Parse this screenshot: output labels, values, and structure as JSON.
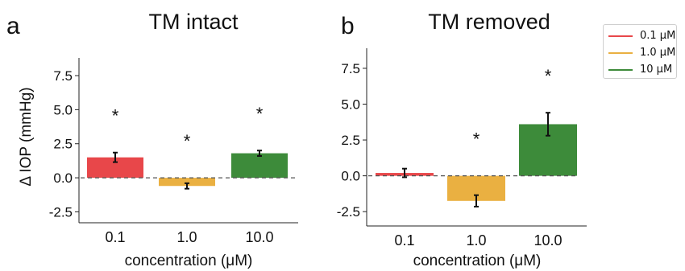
{
  "colors": {
    "0.1": "#e8474a",
    "1.0": "#eab041",
    "10": "#3d8b3a"
  },
  "legend": {
    "entries": [
      {
        "label": "0.1 μM",
        "color": "#e8474a"
      },
      {
        "label": "1.0 μM",
        "color": "#eab041"
      },
      {
        "label": "10  μM",
        "color": "#3d8b3a"
      }
    ]
  },
  "chart_data": [
    {
      "panel_letter": "a",
      "type": "bar",
      "title": "TM intact",
      "xlabel": "concentration (μM)",
      "ylabel": "Δ IOP (mmHg)",
      "categories": [
        "0.1",
        "1.0",
        "10.0"
      ],
      "values": [
        1.5,
        -0.6,
        1.8
      ],
      "errors": [
        0.35,
        0.2,
        0.2
      ],
      "significance": [
        "*",
        "*",
        "*"
      ],
      "yticks": [
        "-2.5",
        "0.0",
        "2.5",
        "5.0",
        "7.5"
      ],
      "ylim": [
        -3.3,
        8.8
      ],
      "reference_line": 0,
      "grid": false
    },
    {
      "panel_letter": "b",
      "type": "bar",
      "title": "TM removed",
      "xlabel": "concentration (μM)",
      "ylabel": "",
      "categories": [
        "0.1",
        "1.0",
        "10.0"
      ],
      "values": [
        0.2,
        -1.75,
        3.6
      ],
      "errors": [
        0.3,
        0.4,
        0.8
      ],
      "significance": [
        "",
        "*",
        "*"
      ],
      "yticks": [
        "-2.5",
        "0.0",
        "2.5",
        "5.0",
        "7.5"
      ],
      "ylim": [
        -3.5,
        8.9
      ],
      "reference_line": 0,
      "grid": false
    }
  ]
}
